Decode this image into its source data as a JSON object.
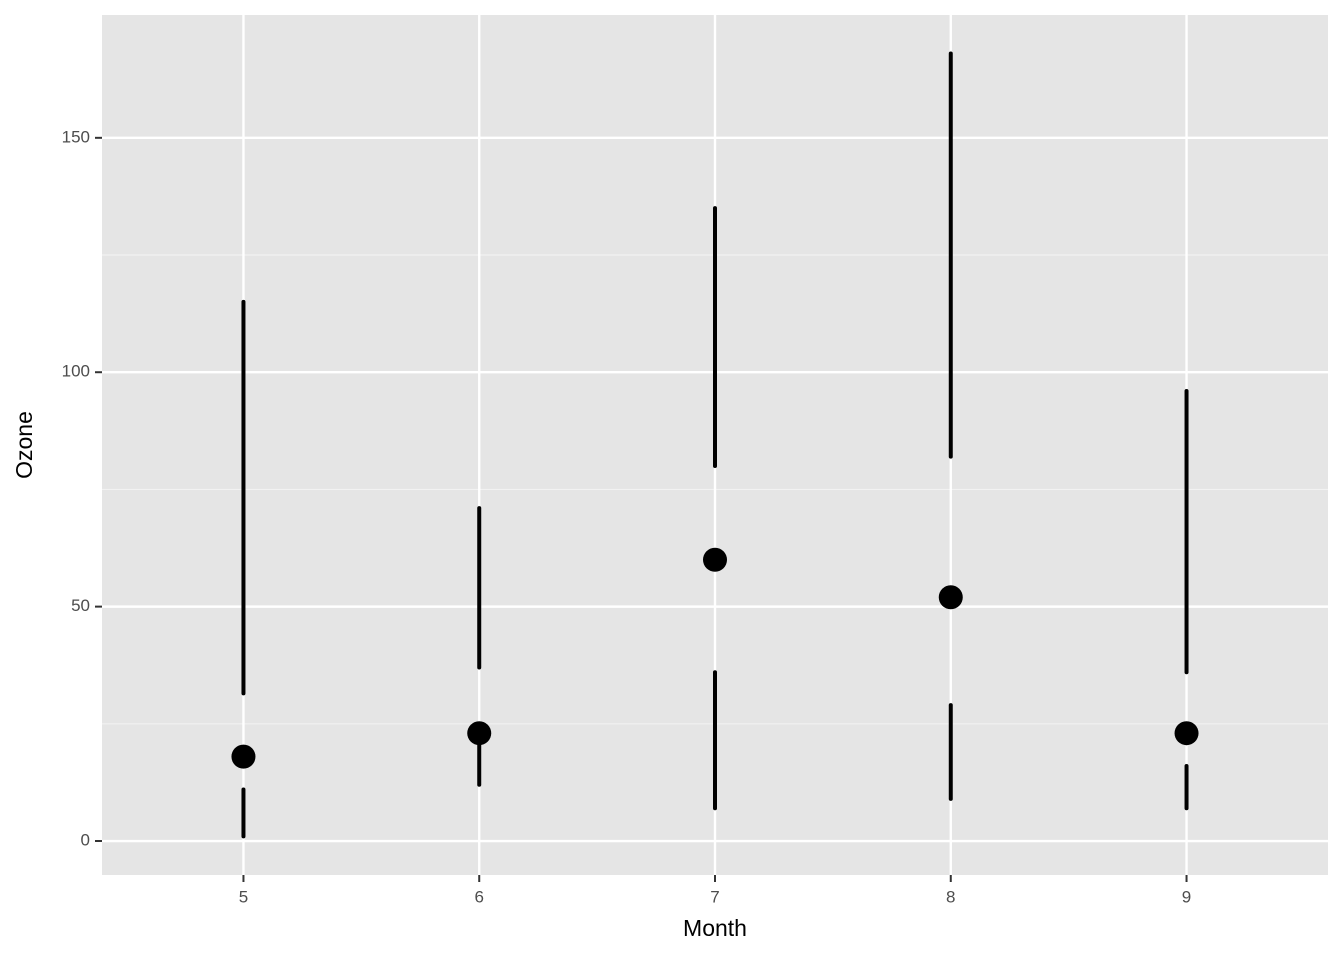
{
  "chart_data": {
    "type": "linerange_point",
    "x_label": "Month",
    "y_label": "Ozone",
    "x": [
      5,
      6,
      7,
      8,
      9
    ],
    "ymin": [
      1,
      12,
      7,
      9,
      7
    ],
    "lower": [
      11,
      20.5,
      36,
      29,
      16
    ],
    "median": [
      18,
      23,
      60,
      52,
      23
    ],
    "upper": [
      31.5,
      37,
      80,
      82,
      36
    ],
    "ymax": [
      115,
      71,
      135,
      168,
      96
    ],
    "color": "#000000",
    "xlim": [
      4.4,
      9.6
    ],
    "xticks": [
      5,
      6,
      7,
      8,
      9
    ],
    "ylim": [
      -7.25,
      176.2
    ],
    "yticks": [
      0,
      50,
      100,
      150
    ],
    "yminor": [
      25,
      75,
      125
    ],
    "grid": true
  }
}
